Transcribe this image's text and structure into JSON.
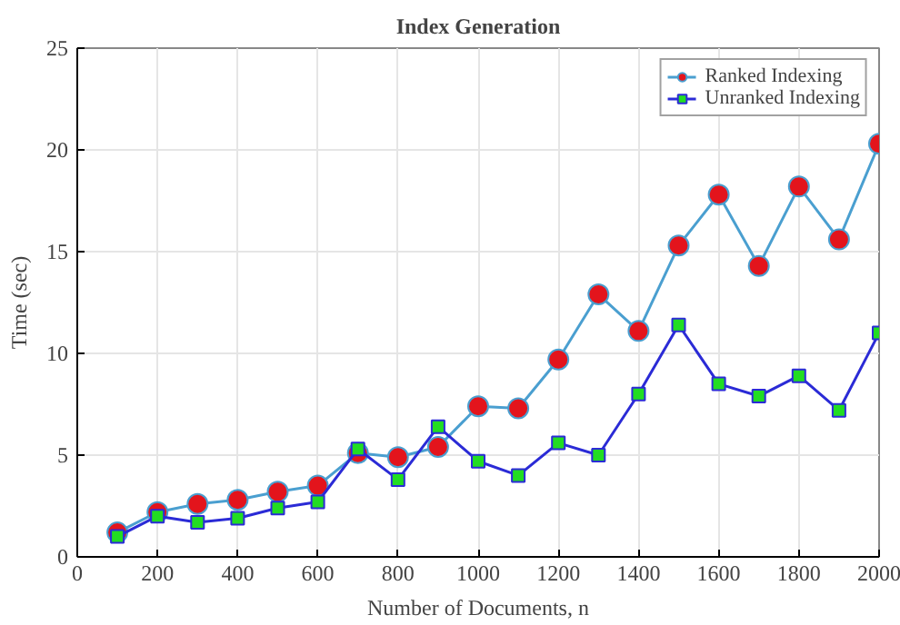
{
  "chart_data": {
    "type": "line",
    "title": "Index Generation",
    "xlabel": "Number of Documents, n",
    "ylabel": "Time (sec)",
    "x": [
      100,
      200,
      300,
      400,
      500,
      600,
      700,
      800,
      900,
      1000,
      1100,
      1200,
      1300,
      1400,
      1500,
      1600,
      1700,
      1800,
      1900,
      2000
    ],
    "series": [
      {
        "name": "Ranked Indexing",
        "color": "#e3141c",
        "marker": "circle",
        "values": [
          1.2,
          2.2,
          2.6,
          2.8,
          3.2,
          3.5,
          5.1,
          4.9,
          5.4,
          7.4,
          7.3,
          9.7,
          12.9,
          11.1,
          15.3,
          17.8,
          14.3,
          18.2,
          15.6,
          20.3
        ]
      },
      {
        "name": "Unranked Indexing",
        "color": "#22dd22",
        "marker": "square",
        "values": [
          1.0,
          2.0,
          1.7,
          1.9,
          2.4,
          2.7,
          5.3,
          3.8,
          6.4,
          4.7,
          4.0,
          5.6,
          5.0,
          8.0,
          11.4,
          8.5,
          7.9,
          8.9,
          7.2,
          11.0
        ]
      }
    ],
    "xlim": [
      0,
      2000
    ],
    "ylim": [
      0,
      25
    ],
    "xticks": [
      0,
      200,
      400,
      600,
      800,
      1000,
      1200,
      1400,
      1600,
      1800,
      2000
    ],
    "yticks": [
      0,
      5,
      10,
      15,
      20,
      25
    ],
    "grid": true,
    "legend": "top right"
  }
}
